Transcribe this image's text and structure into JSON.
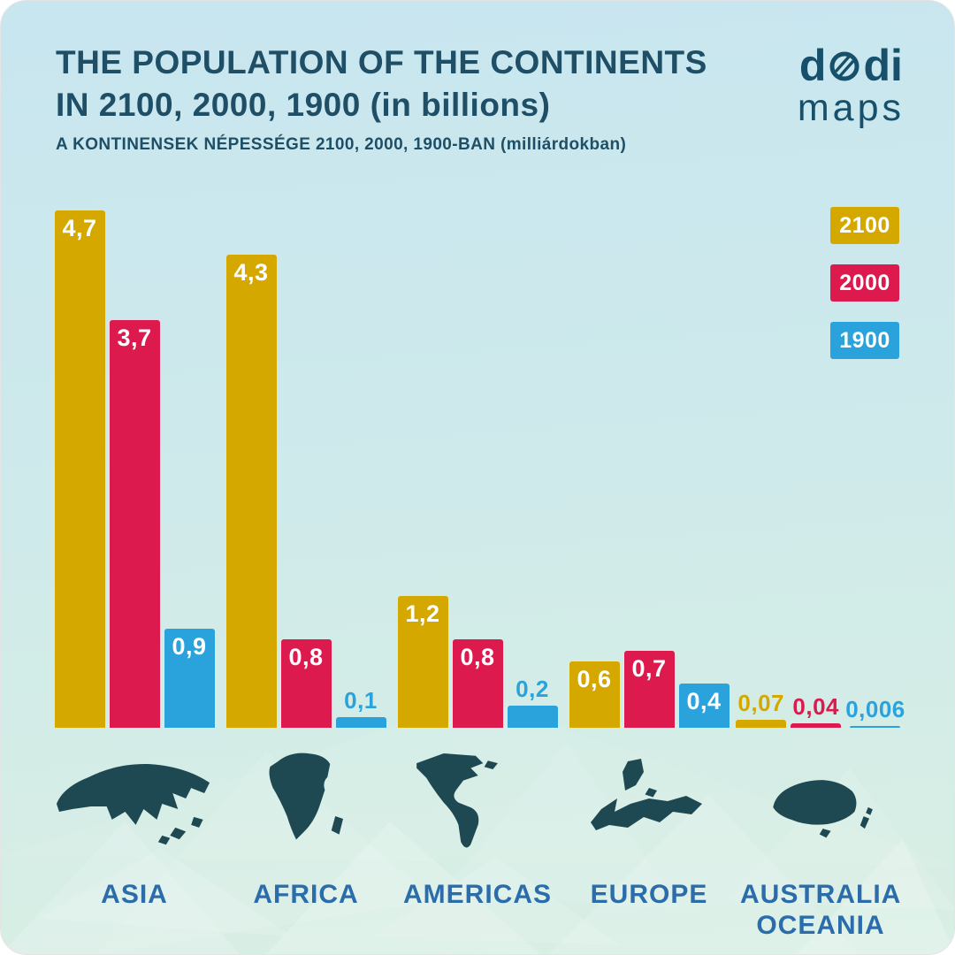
{
  "header": {
    "title_line1": "THE POPULATION OF THE CONTINENTS",
    "title_line2": "IN 2100, 2000, 1900 (in billions)",
    "subtitle": "A KONTINENSEK NÉPESSÉGE 2100, 2000, 1900-BAN (milliárdokban)"
  },
  "logo": {
    "part1": "d",
    "part2": "di",
    "line2": "maps"
  },
  "colors": {
    "gold": "#d5a800",
    "red": "#dc1a4e",
    "blue": "#2aa3dc",
    "title_text": "#1e4f66",
    "category_text": "#2b6cab",
    "silhouette": "#1f4952"
  },
  "legend": [
    {
      "label": "2100",
      "color": "#d5a800"
    },
    {
      "label": "2000",
      "color": "#dc1a4e"
    },
    {
      "label": "1900",
      "color": "#2aa3dc"
    }
  ],
  "chart_data": {
    "type": "bar",
    "title": "THE POPULATION OF THE CONTINENTS IN 2100, 2000, 1900 (in billions)",
    "subtitle": "A KONTINENSEK NÉPESSÉGE 2100, 2000, 1900-BAN (milliárdokban)",
    "unit": "billions",
    "categories": [
      "ASIA",
      "AFRICA",
      "AMERICAS",
      "EUROPE",
      "AUSTRALIA OCEANIA"
    ],
    "series": [
      {
        "name": "2100",
        "color": "#d5a800",
        "values": [
          4.7,
          4.3,
          1.2,
          0.6,
          0.07
        ],
        "labels": [
          "4,7",
          "4,3",
          "1,2",
          "0,6",
          "0,07"
        ]
      },
      {
        "name": "2000",
        "color": "#dc1a4e",
        "values": [
          3.7,
          0.8,
          0.8,
          0.7,
          0.04
        ],
        "labels": [
          "3,7",
          "0,8",
          "0,8",
          "0,7",
          "0,04"
        ]
      },
      {
        "name": "1900",
        "color": "#2aa3dc",
        "values": [
          0.9,
          0.1,
          0.2,
          0.4,
          0.006
        ],
        "labels": [
          "0,9",
          "0,1",
          "0,2",
          "0,4",
          "0,006"
        ]
      }
    ],
    "ylim": [
      0,
      5
    ],
    "grid": false,
    "legend_position": "top-right"
  }
}
